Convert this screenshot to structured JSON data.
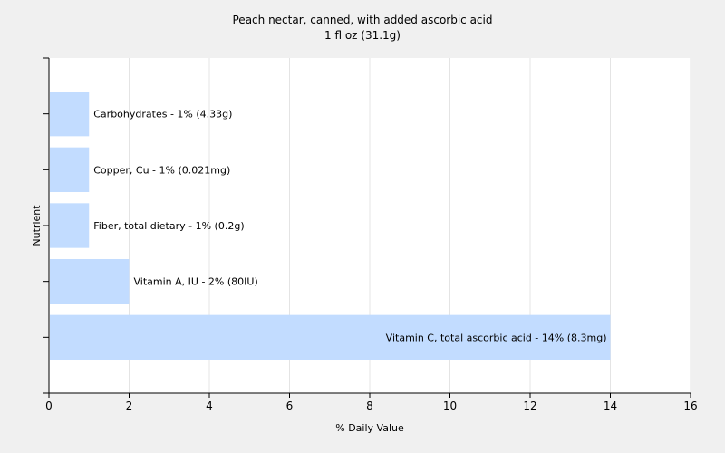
{
  "chart_data": {
    "type": "bar",
    "orientation": "horizontal",
    "title": "Peach nectar, canned, with added ascorbic acid",
    "subtitle": "1 fl oz (31.1g)",
    "xlabel": "% Daily Value",
    "ylabel": "Nutrient",
    "xlim": [
      0,
      16
    ],
    "x_ticks": [
      0,
      2,
      4,
      6,
      8,
      10,
      12,
      14,
      16
    ],
    "grid": "vertical",
    "categories": [
      "Carbohydrates",
      "Copper, Cu",
      "Fiber, total dietary",
      "Vitamin A, IU",
      "Vitamin C, total ascorbic acid"
    ],
    "values": [
      1,
      1,
      1,
      2,
      14
    ],
    "data_labels": [
      "Carbohydrates - 1% (4.33g)",
      "Copper, Cu - 1% (0.021mg)",
      "Fiber, total dietary - 1% (0.2g)",
      "Vitamin A, IU - 2% (80IU)",
      "Vitamin C, total ascorbic acid - 14% (8.3mg)"
    ],
    "colors": {
      "bar": "#c2dcff",
      "plot_background": "#ffffff",
      "page_background": "#f0f0f0",
      "grid": "#e4e4e4",
      "axis": "#000000"
    }
  }
}
